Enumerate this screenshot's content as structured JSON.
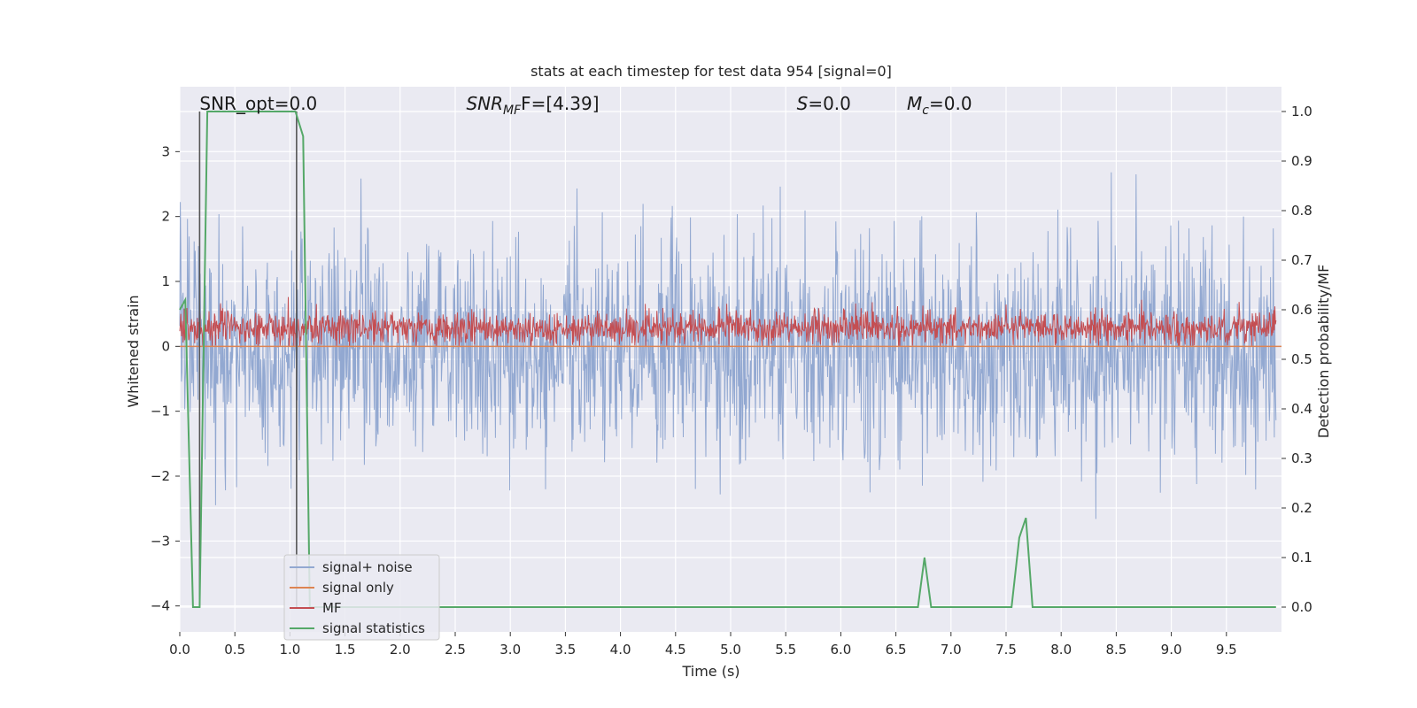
{
  "chart_data": {
    "type": "line",
    "title": "stats at each timestep for test data 954 [signal=0]",
    "xlabel": "Time (s)",
    "ylabel": "Whitened strain",
    "ylabel_right": "Detection probability/MF",
    "xlim": [
      0.0,
      10.0
    ],
    "ylim": [
      -4.4,
      4.0
    ],
    "ylim_right": [
      -0.05,
      1.05
    ],
    "x_ticks": [
      0.0,
      0.5,
      1.0,
      1.5,
      2.0,
      2.5,
      3.0,
      3.5,
      4.0,
      4.5,
      5.0,
      5.5,
      6.0,
      6.5,
      7.0,
      7.5,
      8.0,
      8.5,
      9.0,
      9.5
    ],
    "x_tick_labels": [
      "0.0",
      "0.5",
      "1.0",
      "1.5",
      "2.0",
      "2.5",
      "3.0",
      "3.5",
      "4.0",
      "4.5",
      "5.0",
      "5.5",
      "6.0",
      "6.5",
      "7.0",
      "7.5",
      "8.0",
      "8.5",
      "9.0",
      "9.5"
    ],
    "y_ticks": [
      -4,
      -3,
      -2,
      -1,
      0,
      1,
      2,
      3
    ],
    "y_tick_labels": [
      "−4",
      "−3",
      "−2",
      "−1",
      "0",
      "1",
      "2",
      "3"
    ],
    "y2_ticks": [
      0.0,
      0.1,
      0.2,
      0.3,
      0.4,
      0.5,
      0.6,
      0.7,
      0.8,
      0.9,
      1.0
    ],
    "y2_tick_labels": [
      "0.0",
      "0.1",
      "0.2",
      "0.3",
      "0.4",
      "0.5",
      "0.6",
      "0.7",
      "0.8",
      "0.9",
      "1.0"
    ],
    "grid": true,
    "legend_position": "lower-left",
    "annotations": [
      {
        "plain": "SNR_opt=0.0",
        "italic": "",
        "sub": "",
        "rest": "",
        "x_data": 0.18
      },
      {
        "plain": "",
        "italic": "SNR",
        "sub": "MF",
        "rest": "F=[4.39]",
        "x_data": 2.6
      },
      {
        "plain": "",
        "italic": "S",
        "sub": "",
        "rest": "=0.0",
        "x_data": 5.6
      },
      {
        "plain": "",
        "italic": "M",
        "sub": "c",
        "rest": "=0.0",
        "x_data": 6.6
      }
    ],
    "vertical_markers": [
      0.18,
      1.06
    ],
    "noise_band": {
      "mean": 0.0,
      "sigma": 0.85,
      "step": 0.005,
      "seed": 954
    },
    "mf_band": {
      "mean": 0.28,
      "sigma": 0.13,
      "step": 0.005,
      "seed": 4390
    },
    "series": [
      {
        "name": "signal+ noise",
        "color": "#92a8d1",
        "axis": "left"
      },
      {
        "name": "signal only",
        "color": "#dd8452",
        "axis": "left",
        "x": [
          0.0,
          10.0
        ],
        "y": [
          0.0,
          0.0
        ]
      },
      {
        "name": "MF",
        "color": "#c44e52",
        "axis": "left"
      },
      {
        "name": "signal statistics",
        "color": "#55a868",
        "axis": "right",
        "x": [
          0.0,
          0.05,
          0.12,
          0.18,
          0.25,
          0.3,
          1.0,
          1.05,
          1.12,
          1.18,
          1.25,
          6.7,
          6.76,
          6.82,
          7.55,
          7.62,
          7.68,
          7.74,
          9.95
        ],
        "y": [
          0.6,
          0.62,
          0.0,
          0.0,
          1.0,
          1.0,
          1.0,
          1.0,
          0.95,
          0.0,
          0.0,
          0.0,
          0.1,
          0.0,
          0.0,
          0.14,
          0.18,
          0.0,
          0.0
        ]
      }
    ],
    "colors": {
      "plot_bg": "#eaeaf2",
      "grid": "#ffffff",
      "marker_line": "#555555"
    }
  }
}
